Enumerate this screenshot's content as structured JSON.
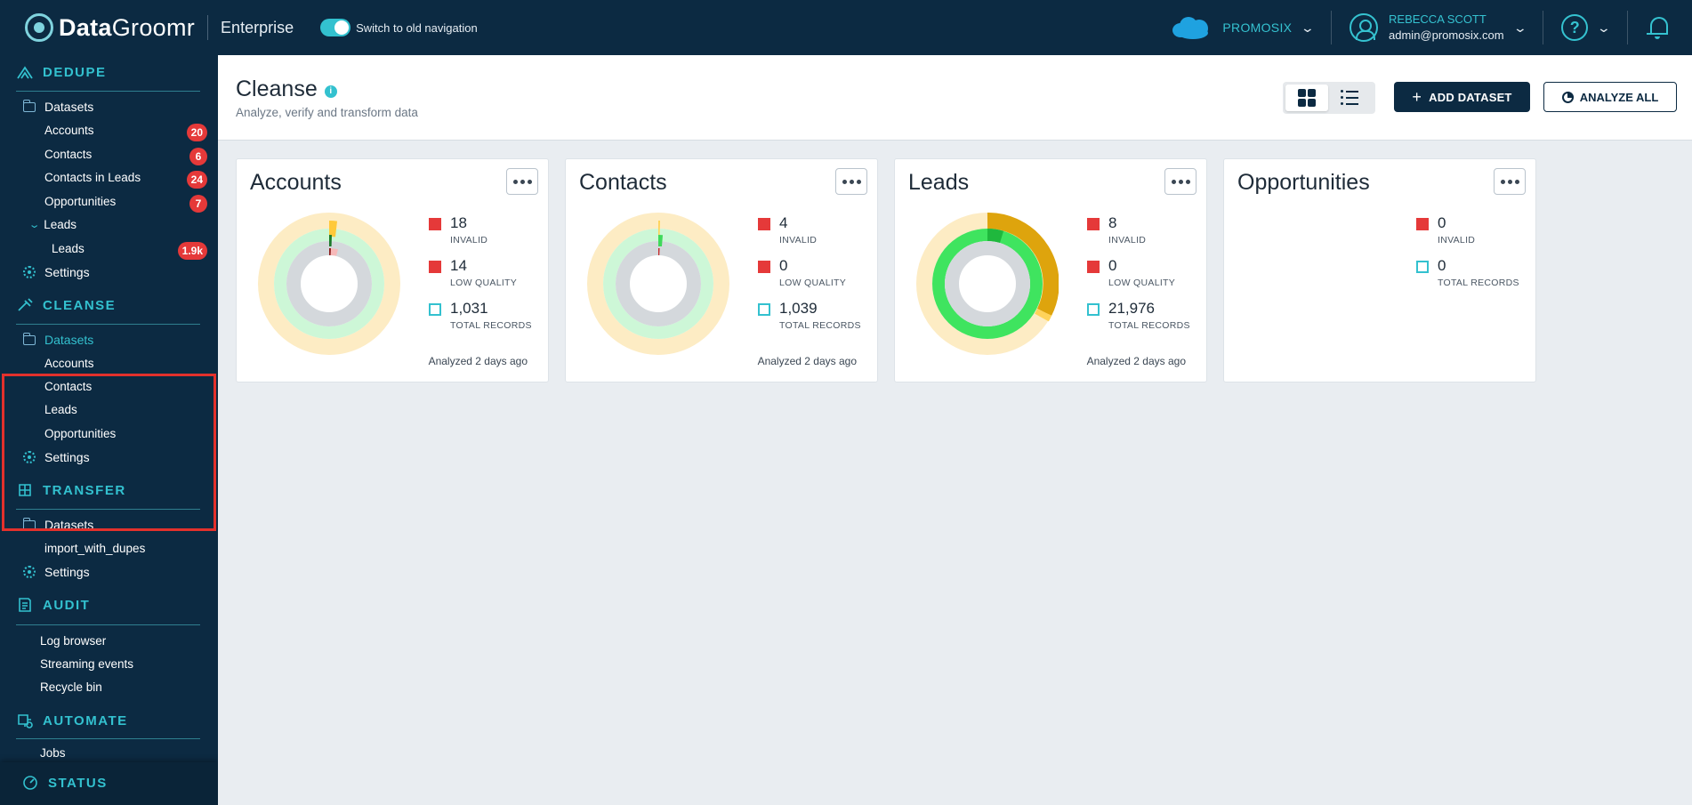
{
  "topbar": {
    "logo_bold": "Data",
    "logo_rest": "Groomr",
    "edition": "Enterprise",
    "toggle_label": "Switch to old navigation",
    "org_name": "PROMOSIX",
    "user_name": "REBECCA SCOTT",
    "user_email": "admin@promosix.com",
    "help": "?"
  },
  "sidebar": {
    "dedupe": {
      "title": "DEDUPE",
      "datasets": "Datasets",
      "items": [
        {
          "label": "Accounts",
          "badge": "20"
        },
        {
          "label": "Contacts",
          "badge": "6"
        },
        {
          "label": "Contacts in Leads",
          "badge": "24"
        },
        {
          "label": "Opportunities",
          "badge": "7"
        }
      ],
      "leads_group": "Leads",
      "leads_child": {
        "label": "Leads",
        "badge": "1.9k"
      },
      "settings": "Settings"
    },
    "cleanse": {
      "title": "CLEANSE",
      "datasets": "Datasets",
      "items": [
        "Accounts",
        "Contacts",
        "Leads",
        "Opportunities"
      ],
      "settings": "Settings"
    },
    "transfer": {
      "title": "TRANSFER",
      "datasets": "Datasets",
      "items": [
        "import_with_dupes"
      ],
      "settings": "Settings"
    },
    "audit": {
      "title": "AUDIT",
      "items": [
        "Log browser",
        "Streaming events",
        "Recycle bin"
      ]
    },
    "automate": {
      "title": "AUTOMATE",
      "items": [
        "Jobs"
      ]
    },
    "status": {
      "title": "STATUS"
    }
  },
  "page": {
    "title": "Cleanse",
    "info": "i",
    "subtitle": "Analyze, verify and transform data",
    "add_dataset": "ADD DATASET",
    "analyze_all": "ANALYZE ALL"
  },
  "stat_labels": {
    "invalid": "INVALID",
    "low_quality": "LOW QUALITY",
    "total": "TOTAL RECORDS"
  },
  "cards": [
    {
      "title": "Accounts",
      "invalid": "18",
      "low_quality": "14",
      "total": "1,031",
      "analyzed": "Analyzed 2 days ago"
    },
    {
      "title": "Contacts",
      "invalid": "4",
      "low_quality": "0",
      "total": "1,039",
      "analyzed": "Analyzed 2 days ago"
    },
    {
      "title": "Leads",
      "invalid": "8",
      "low_quality": "0",
      "total": "21,976",
      "analyzed": "Analyzed 2 days ago"
    },
    {
      "title": "Opportunities",
      "invalid": "0",
      "total": "0"
    }
  ],
  "colors": {
    "navy": "#0c2a42",
    "accent": "#33c1cf",
    "badge_red": "#e53939",
    "highlight_red": "#e3312c"
  }
}
